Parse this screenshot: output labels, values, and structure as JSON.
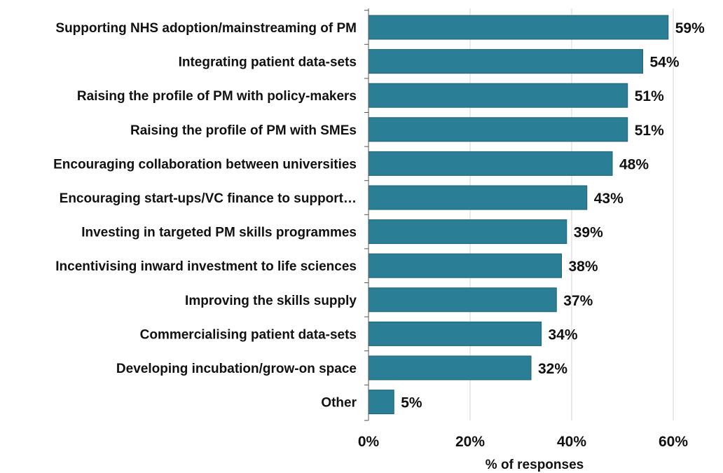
{
  "chart_data": {
    "type": "bar",
    "orientation": "horizontal",
    "categories": [
      "Supporting NHS adoption/mainstreaming of PM",
      "Integrating patient data-sets",
      "Raising the profile of PM with policy-makers",
      "Raising the profile of PM with SMEs",
      "Encouraging collaboration between universities",
      "Encouraging start-ups/VC finance to support…",
      "Investing in targeted PM skills programmes",
      "Incentivising inward investment to life sciences",
      "Improving the skills supply",
      "Commercialising patient data-sets",
      "Developing incubation/grow-on space",
      "Other"
    ],
    "values": [
      59,
      54,
      51,
      51,
      48,
      43,
      39,
      38,
      37,
      34,
      32,
      5
    ],
    "value_labels": [
      "59%",
      "54%",
      "51%",
      "51%",
      "48%",
      "43%",
      "39%",
      "38%",
      "37%",
      "34%",
      "32%",
      "5%"
    ],
    "xlim": [
      0,
      60
    ],
    "xticks": [
      0,
      20,
      40,
      60
    ],
    "xtick_labels": [
      "0%",
      "20%",
      "40%",
      "60%"
    ],
    "xlabel": "% of responses",
    "ylabel": "",
    "title": "",
    "grid": "vertical",
    "bar_color": "#2a7f96",
    "bar_border_color": "#1d6276",
    "grid_color": "#d6d6d6"
  }
}
